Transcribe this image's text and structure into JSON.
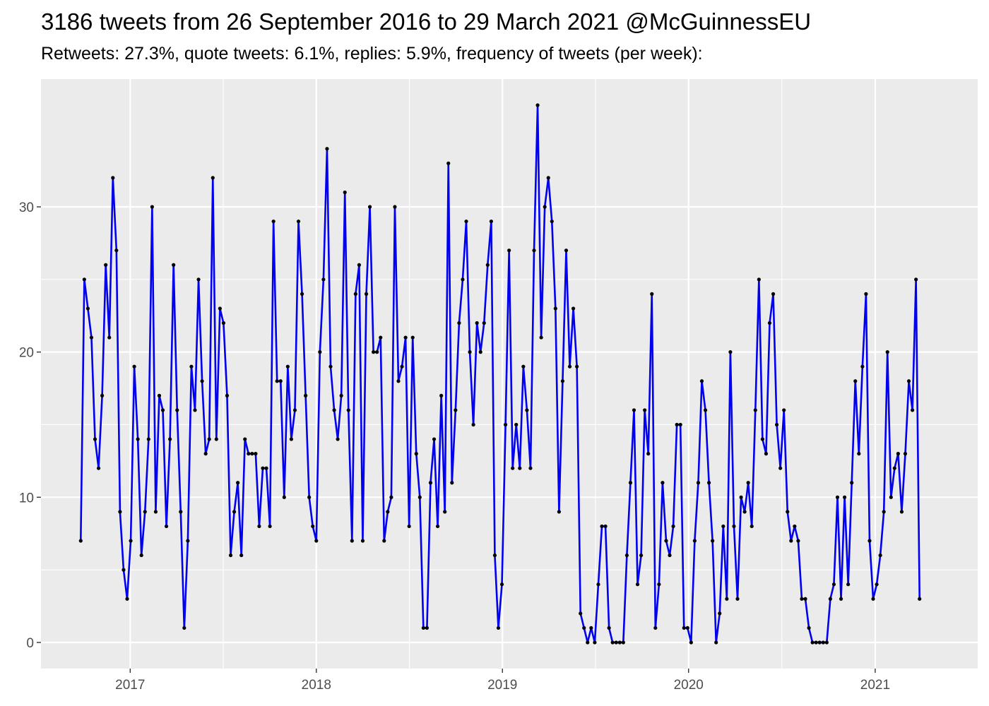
{
  "chart_data": {
    "type": "line",
    "title": "3186 tweets from 26 September 2016 to 29 March 2021 @McGuinnessEU",
    "subtitle": "Retweets: 27.3%, quote tweets: 6.1%, replies: 5.9%, frequency of tweets (per week):",
    "xlabel": "",
    "ylabel": "",
    "x_start": "2016-09-26",
    "x_step_days": 7,
    "xlim": [
      "2016-07-10",
      "2021-07-21"
    ],
    "ylim": [
      -1.8,
      38.8
    ],
    "x_ticks": [
      "2017",
      "2018",
      "2019",
      "2020",
      "2021"
    ],
    "y_ticks": [
      0,
      10,
      20,
      30
    ],
    "grid": true,
    "colors": {
      "line": "#0000ee",
      "point": "#000000",
      "panel": "#ebebeb",
      "grid": "#ffffff"
    },
    "series": [
      {
        "values": [
          7,
          25,
          23,
          21,
          14,
          12,
          17,
          26,
          21,
          32,
          27,
          9,
          5,
          3,
          7,
          19,
          14,
          6,
          9,
          14,
          30,
          9,
          17,
          16,
          8,
          14,
          26,
          16,
          9,
          1,
          7,
          19,
          16,
          25,
          18,
          13,
          14,
          32,
          14,
          23,
          22,
          17,
          6,
          9,
          11,
          6,
          14,
          13,
          13,
          13,
          8,
          12,
          12,
          8,
          29,
          18,
          18,
          10,
          19,
          14,
          16,
          29,
          24,
          17,
          10,
          8,
          7,
          20,
          25,
          34,
          19,
          16,
          14,
          17,
          31,
          16,
          7,
          24,
          26,
          7,
          24,
          30,
          20,
          20,
          21,
          7,
          9,
          10,
          30,
          18,
          19,
          21,
          8,
          21,
          13,
          10,
          1,
          1,
          11,
          14,
          8,
          17,
          9,
          33,
          11,
          16,
          22,
          25,
          29,
          20,
          15,
          22,
          20,
          22,
          26,
          29,
          6,
          1,
          4,
          15,
          27,
          12,
          15,
          12,
          19,
          16,
          12,
          27,
          37,
          21,
          30,
          32,
          29,
          23,
          9,
          18,
          27,
          19,
          23,
          19,
          2,
          1,
          0,
          1,
          0,
          4,
          8,
          8,
          1,
          0,
          0,
          0,
          0,
          6,
          11,
          16,
          4,
          6,
          16,
          13,
          24,
          1,
          4,
          11,
          7,
          6,
          8,
          15,
          15,
          1,
          1,
          0,
          7,
          11,
          18,
          16,
          11,
          7,
          0,
          2,
          8,
          3,
          20,
          8,
          3,
          10,
          9,
          11,
          8,
          16,
          25,
          14,
          13,
          22,
          24,
          15,
          12,
          16,
          9,
          7,
          8,
          7,
          3,
          3,
          1,
          0,
          0,
          0,
          0,
          0,
          3,
          4,
          10,
          3,
          10,
          4,
          11,
          18,
          13,
          19,
          24,
          7,
          3,
          4,
          6,
          9,
          20,
          10,
          12,
          13,
          9,
          13,
          18,
          16,
          25,
          3
        ]
      }
    ]
  }
}
